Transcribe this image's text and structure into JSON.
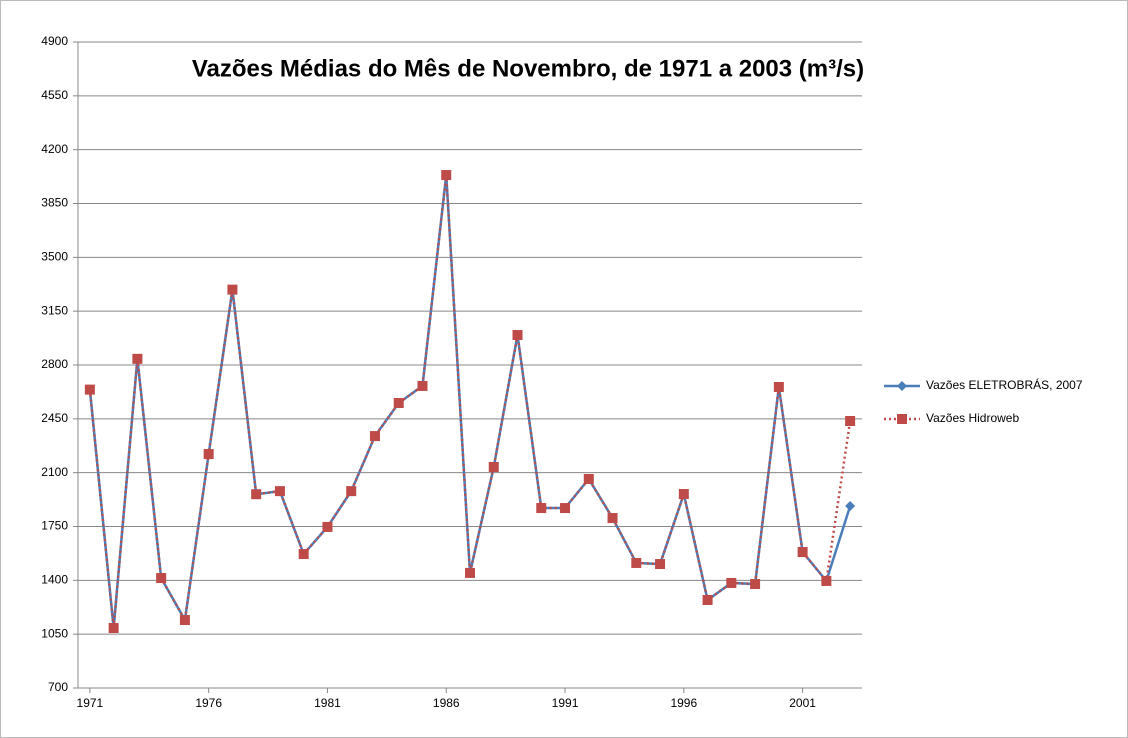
{
  "chart_data": {
    "type": "line",
    "title": "Vazões Médias do Mês de Novembro, de 1971 a 2003 (m³/s)",
    "x": [
      1971,
      1972,
      1973,
      1974,
      1975,
      1976,
      1977,
      1978,
      1979,
      1980,
      1981,
      1982,
      1983,
      1984,
      1985,
      1986,
      1987,
      1988,
      1989,
      1990,
      1991,
      1992,
      1993,
      1994,
      1995,
      1996,
      1997,
      1998,
      1999,
      2000,
      2001,
      2002,
      2003
    ],
    "series": [
      {
        "name": "Vazões ELETROBRÁS, 2007",
        "color": "#4a7ebb",
        "marker": "diamond",
        "dash": "solid",
        "values": [
          2640,
          1090,
          2840,
          1415,
          1142,
          2221,
          3290,
          1960,
          1980,
          1571,
          1747,
          1980,
          2338,
          2553,
          2664,
          4035,
          1448,
          2137,
          2995,
          1870,
          1870,
          2059,
          1805,
          1513,
          1506,
          1961,
          1272,
          1383,
          1376,
          2657,
          1584,
          1396,
          1883
        ]
      },
      {
        "name": "Vazões Hidroweb",
        "color": "#be4b48",
        "marker": "square",
        "dash": "dotted",
        "values": [
          2640,
          1090,
          2840,
          1415,
          1142,
          2221,
          3290,
          1960,
          1980,
          1571,
          1747,
          1980,
          2338,
          2553,
          2664,
          4035,
          1448,
          2137,
          2995,
          1870,
          1870,
          2059,
          1805,
          1513,
          1506,
          1961,
          1272,
          1383,
          1376,
          2657,
          1584,
          1396,
          2436
        ]
      }
    ],
    "xlim": [
      1970.5,
      2003.5
    ],
    "xticks": [
      1971,
      1976,
      1981,
      1986,
      1991,
      1996,
      2001
    ],
    "ylim": [
      700,
      4900
    ],
    "yticks": [
      700,
      1050,
      1400,
      1750,
      2100,
      2450,
      2800,
      3150,
      3500,
      3850,
      4200,
      4550,
      4900
    ],
    "grid": true,
    "legend": "right"
  }
}
